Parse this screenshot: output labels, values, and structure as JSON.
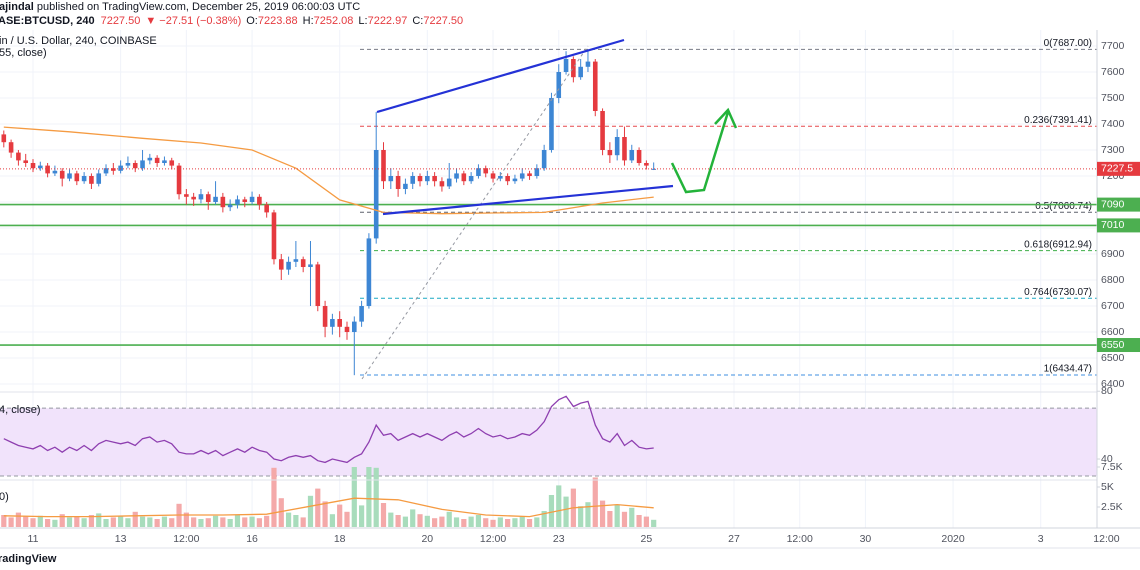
{
  "header": {
    "publisher": "ajindal",
    "published": " published on TradingView.com, December 25, 2019 06:00:03 UTC",
    "symbol": "ASE:BTCUSD, 240",
    "last": "7227.50",
    "change": "▼ −27.51 (−0.38%)",
    "o_label": "O:",
    "o": "7223.88",
    "h_label": "H:",
    "h": "7252.08",
    "l_label": "L:",
    "l": "7222.97",
    "c_label": "C:",
    "c": "7227.50",
    "pane": "in / U.S. Dollar, 240, COINBASE",
    "ma": "55, close)",
    "rsi": "4, close)",
    "volume": "0)",
    "footer": "radingView"
  },
  "chart_data": [
    {
      "type": "candlestick",
      "up_color": "#3d86d4",
      "down_color": "#e53a3f",
      "x": [
        -4,
        -3,
        -2,
        -1,
        0,
        1,
        2,
        3,
        4,
        5,
        6,
        7,
        8,
        9,
        10,
        11,
        12,
        13,
        14,
        15,
        16,
        17,
        18,
        19,
        20,
        21,
        22,
        23,
        24,
        25,
        26,
        27,
        28,
        29,
        30,
        31,
        32,
        33,
        34,
        35,
        36,
        37,
        38,
        39,
        40,
        41,
        42,
        43,
        44,
        45,
        46,
        47,
        48,
        49,
        50,
        51,
        52,
        53,
        54,
        55,
        56,
        57,
        58,
        59,
        60,
        61,
        62,
        63,
        64,
        65,
        66,
        67,
        68,
        69,
        70,
        71,
        72,
        73,
        74,
        75,
        76,
        77,
        78,
        79,
        80,
        81,
        82,
        83,
        84,
        85
      ],
      "open": [
        7360,
        7330,
        7290,
        7260,
        7250,
        7230,
        7240,
        7210,
        7220,
        7190,
        7210,
        7180,
        7200,
        7170,
        7210,
        7230,
        7220,
        7240,
        7250,
        7230,
        7260,
        7270,
        7250,
        7260,
        7240,
        7130,
        7120,
        7110,
        7130,
        7100,
        7120,
        7080,
        7090,
        7110,
        7100,
        7120,
        7090,
        7060,
        6880,
        6840,
        6870,
        6880,
        6850,
        6860,
        6700,
        6620,
        6650,
        6620,
        6600,
        6640,
        6700,
        6960,
        7300,
        7180,
        7200,
        7150,
        7170,
        7200,
        7180,
        7200,
        7180,
        7160,
        7190,
        7210,
        7180,
        7200,
        7230,
        7210,
        7190,
        7200,
        7180,
        7190,
        7210,
        7200,
        7230,
        7300,
        7500,
        7600,
        7650,
        7580,
        7620,
        7640,
        7450,
        7300,
        7280,
        7350,
        7260,
        7300,
        7250,
        7223.88
      ],
      "high": [
        7375,
        7340,
        7300,
        7285,
        7265,
        7255,
        7250,
        7240,
        7230,
        7225,
        7220,
        7215,
        7210,
        7225,
        7245,
        7250,
        7260,
        7275,
        7260,
        7300,
        7285,
        7280,
        7275,
        7270,
        7250,
        7150,
        7135,
        7150,
        7140,
        7180,
        7135,
        7110,
        7125,
        7120,
        7140,
        7130,
        7100,
        7070,
        6900,
        6890,
        6950,
        6890,
        6950,
        6870,
        6720,
        6670,
        6680,
        6640,
        6660,
        6720,
        6980,
        7446,
        7330,
        7230,
        7220,
        7190,
        7215,
        7210,
        7220,
        7215,
        7195,
        7250,
        7230,
        7220,
        7215,
        7245,
        7240,
        7220,
        7215,
        7210,
        7205,
        7230,
        7220,
        7245,
        7320,
        7520,
        7630,
        7680,
        7660,
        7650,
        7687,
        7650,
        7460,
        7330,
        7380,
        7390,
        7320,
        7310,
        7260,
        7252.08
      ],
      "low": [
        7310,
        7270,
        7240,
        7235,
        7215,
        7220,
        7195,
        7200,
        7160,
        7180,
        7165,
        7170,
        7150,
        7160,
        7200,
        7205,
        7210,
        7230,
        7215,
        7220,
        7245,
        7235,
        7240,
        7225,
        7110,
        7090,
        7085,
        7095,
        7070,
        7090,
        7060,
        7065,
        7075,
        7080,
        7090,
        7070,
        7040,
        6860,
        6800,
        6820,
        6850,
        6830,
        6700,
        6680,
        6580,
        6590,
        6580,
        6570,
        6434,
        6620,
        6690,
        6940,
        7150,
        7150,
        7120,
        7130,
        7150,
        7160,
        7165,
        7160,
        7140,
        7150,
        7175,
        7165,
        7170,
        7190,
        7195,
        7175,
        7180,
        7165,
        7170,
        7180,
        7185,
        7190,
        7220,
        7290,
        7480,
        7590,
        7560,
        7570,
        7600,
        7430,
        7280,
        7250,
        7260,
        7240,
        7250,
        7240,
        7225,
        7222.97
      ],
      "close": [
        7330,
        7290,
        7260,
        7250,
        7230,
        7240,
        7210,
        7220,
        7190,
        7210,
        7180,
        7200,
        7170,
        7210,
        7230,
        7220,
        7240,
        7250,
        7230,
        7260,
        7270,
        7250,
        7260,
        7240,
        7130,
        7120,
        7110,
        7130,
        7100,
        7120,
        7080,
        7090,
        7110,
        7100,
        7120,
        7090,
        7060,
        6880,
        6840,
        6870,
        6880,
        6850,
        6860,
        6700,
        6620,
        6650,
        6620,
        6600,
        6640,
        6700,
        6960,
        7300,
        7180,
        7200,
        7150,
        7170,
        7200,
        7180,
        7200,
        7180,
        7160,
        7190,
        7210,
        7180,
        7200,
        7230,
        7210,
        7190,
        7200,
        7180,
        7190,
        7210,
        7200,
        7230,
        7300,
        7500,
        7600,
        7650,
        7580,
        7620,
        7640,
        7450,
        7300,
        7280,
        7350,
        7260,
        7300,
        7250,
        7240,
        7227.5
      ],
      "series": [
        {
          "color": "#f59b42",
          "x": [
            -4,
            5,
            15,
            23,
            30,
            36,
            42,
            48,
            56,
            64,
            70,
            78,
            85
          ],
          "values": [
            7388,
            7370,
            7345,
            7327,
            7300,
            7230,
            7108,
            7060,
            7055,
            7058,
            7060,
            7096,
            7119
          ]
        }
      ],
      "fib": [
        {
          "value": 7687,
          "label": "0(7687.00)",
          "color": "#787b86"
        },
        {
          "value": 7391.41,
          "label": "0.236(7391.41)",
          "color": "#e5484d"
        },
        {
          "value": 7060.74,
          "label": "0.5(7060.74)",
          "color": "#5d606b"
        },
        {
          "value": 6912.94,
          "label": "0.618(6912.94)",
          "color": "#3fae49"
        },
        {
          "value": 6730.07,
          "label": "0.764(6730.07)",
          "color": "#1aa9c4"
        },
        {
          "value": 6434.47,
          "label": "1(6434.47)",
          "color": "#3f8fe0"
        }
      ],
      "levels": [
        7090,
        7010,
        6550
      ],
      "level_color": "#4caf50",
      "xlim": [
        -4.52,
        151.6
      ],
      "ylim": [
        6377,
        7761.5
      ],
      "xticks": [
        {
          "value": 0,
          "label": "11"
        },
        {
          "value": 12,
          "label": "13"
        },
        {
          "value": 21,
          "label": "12:00"
        },
        {
          "value": 30,
          "label": "16"
        },
        {
          "value": 42,
          "label": "18"
        },
        {
          "value": 54,
          "label": "20"
        },
        {
          "value": 63,
          "label": "12:00"
        },
        {
          "value": 72,
          "label": "23"
        },
        {
          "value": 84,
          "label": "25"
        },
        {
          "value": 96,
          "label": "27"
        },
        {
          "value": 105,
          "label": "12:00"
        },
        {
          "value": 114,
          "label": "30"
        },
        {
          "value": 126,
          "label": "2020"
        },
        {
          "value": 138,
          "label": "3"
        },
        {
          "value": 147,
          "label": "12:00"
        }
      ],
      "yticks": [
        6400,
        6500,
        6600,
        6700,
        6800,
        6900,
        7000,
        7100,
        7200,
        7300,
        7400,
        7500,
        7600,
        7700
      ],
      "grid": true
    },
    {
      "type": "line",
      "color": "#8e3fb0",
      "band": [
        30,
        70
      ],
      "band_color": "#f1e3fb",
      "ylim": [
        28.8,
        79.55
      ],
      "yticks": [
        40,
        80
      ],
      "x": [
        -4,
        -3,
        -2,
        -1,
        0,
        1,
        2,
        3,
        4,
        5,
        6,
        7,
        8,
        9,
        10,
        11,
        12,
        13,
        14,
        15,
        16,
        17,
        18,
        19,
        20,
        21,
        22,
        23,
        24,
        25,
        26,
        27,
        28,
        29,
        30,
        31,
        32,
        33,
        34,
        35,
        36,
        37,
        38,
        39,
        40,
        41,
        42,
        43,
        44,
        45,
        46,
        47,
        48,
        49,
        50,
        51,
        52,
        53,
        54,
        55,
        56,
        57,
        58,
        59,
        60,
        61,
        62,
        63,
        64,
        65,
        66,
        67,
        68,
        69,
        70,
        71,
        72,
        73,
        74,
        75,
        76,
        77,
        78,
        79,
        80,
        81,
        82,
        83,
        84,
        85
      ],
      "values": [
        52,
        50,
        48,
        47,
        46,
        48,
        45,
        47,
        44,
        47,
        45,
        48,
        45,
        49,
        51,
        50,
        49,
        50,
        48,
        52,
        53,
        50,
        51,
        49,
        44,
        43,
        43,
        45,
        43,
        45,
        42,
        44,
        46,
        44,
        47,
        45,
        44,
        40,
        39,
        41,
        42,
        41,
        42,
        39,
        38,
        40,
        39,
        38,
        41,
        43,
        50,
        60,
        54,
        55,
        51,
        53,
        55,
        53,
        55,
        53,
        51,
        54,
        56,
        53,
        55,
        58,
        55,
        53,
        54,
        52,
        53,
        55,
        54,
        57,
        62,
        71,
        75,
        77,
        71,
        73,
        74,
        60,
        52,
        50,
        55,
        48,
        51,
        47,
        46,
        46.5
      ]
    },
    {
      "type": "bar",
      "up_color": "#a8dcbc",
      "down_color": "#f4a9a9",
      "ylim": [
        0,
        8375
      ],
      "yticks": [
        {
          "value": 2500,
          "label": "2.5K"
        },
        {
          "value": 5000,
          "label": "5K"
        },
        {
          "value": 7500,
          "label": "7.5K"
        }
      ],
      "x": [
        -4,
        -3,
        -2,
        -1,
        0,
        1,
        2,
        3,
        4,
        5,
        6,
        7,
        8,
        9,
        10,
        11,
        12,
        13,
        14,
        15,
        16,
        17,
        18,
        19,
        20,
        21,
        22,
        23,
        24,
        25,
        26,
        27,
        28,
        29,
        30,
        31,
        32,
        33,
        34,
        35,
        36,
        37,
        38,
        39,
        40,
        41,
        42,
        43,
        44,
        45,
        46,
        47,
        48,
        49,
        50,
        51,
        52,
        53,
        54,
        55,
        56,
        57,
        58,
        59,
        60,
        61,
        62,
        63,
        64,
        65,
        66,
        67,
        68,
        69,
        70,
        71,
        72,
        73,
        74,
        75,
        76,
        77,
        78,
        79,
        80,
        81,
        82,
        83,
        84,
        85
      ],
      "values": [
        1500,
        1200,
        1800,
        1300,
        1100,
        1400,
        1000,
        900,
        1600,
        1200,
        1300,
        1100,
        1500,
        1700,
        1000,
        1200,
        1400,
        1100,
        1900,
        1300,
        1200,
        1000,
        1300,
        1100,
        2900,
        1800,
        1200,
        1000,
        1100,
        1400,
        1200,
        1000,
        1500,
        1200,
        1300,
        1100,
        1400,
        7400,
        3600,
        1800,
        1500,
        1200,
        3900,
        4800,
        3200,
        1600,
        2800,
        1900,
        7500,
        2700,
        7500,
        7400,
        3000,
        1800,
        1500,
        1300,
        2200,
        1600,
        1400,
        1100,
        1300,
        1900,
        1200,
        1000,
        1300,
        1500,
        1100,
        900,
        1200,
        1000,
        1100,
        1300,
        1000,
        1200,
        2000,
        4000,
        5200,
        3800,
        4800,
        2600,
        3100,
        6200,
        3300,
        2000,
        2800,
        1900,
        2400,
        1500,
        1300,
        900
      ],
      "series": [
        {
          "color": "#f59b42",
          "x": [
            -4,
            2,
            8,
            14,
            20,
            26,
            32,
            38,
            44,
            50,
            56,
            62,
            68,
            74,
            80,
            85
          ],
          "values": [
            1400,
            1300,
            1300,
            1400,
            1500,
            1500,
            1600,
            2600,
            3600,
            3400,
            2200,
            1500,
            1300,
            2400,
            2800,
            2400
          ]
        }
      ]
    }
  ]
}
